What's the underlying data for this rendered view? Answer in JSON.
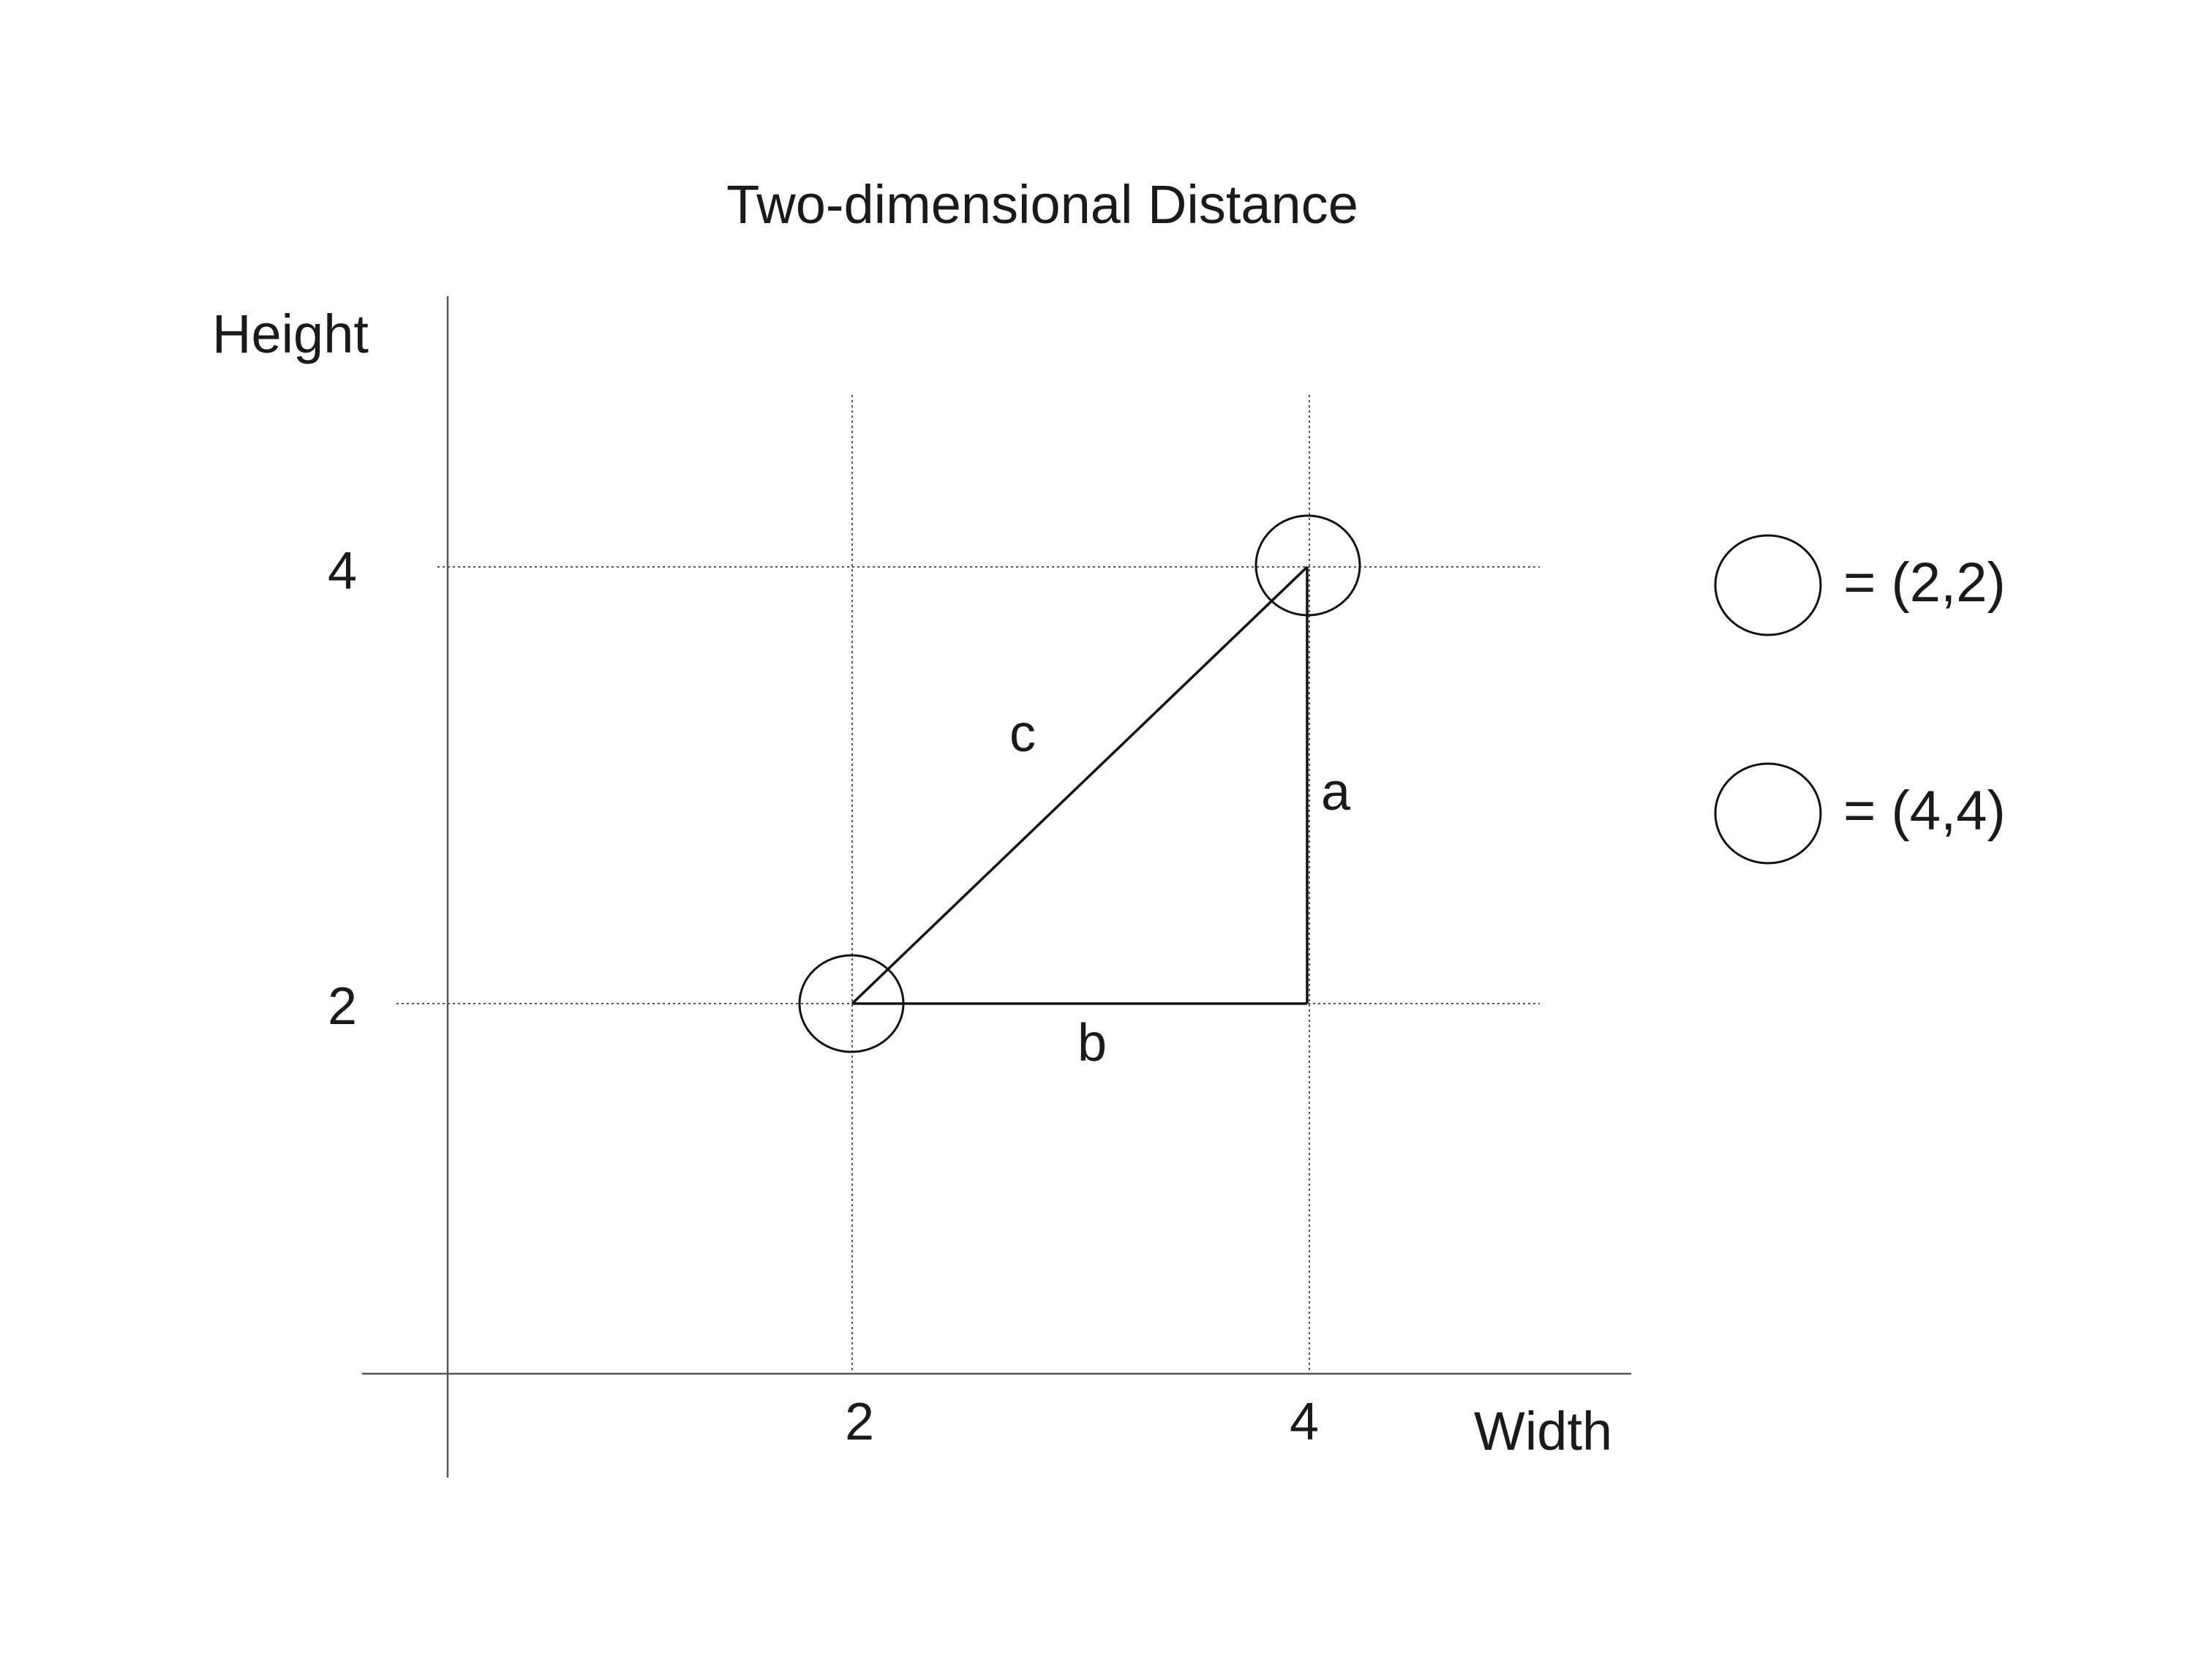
{
  "title": "Two-dimensional Distance",
  "axes": {
    "x_label": "Width",
    "y_label": "Height",
    "x_ticks": [
      2,
      4
    ],
    "y_ticks": [
      4,
      2
    ]
  },
  "points": [
    {
      "x": 2,
      "y": 2
    },
    {
      "x": 4,
      "y": 4
    }
  ],
  "triangle_sides": {
    "hypotenuse": "c",
    "vertical": "a",
    "horizontal": "b"
  },
  "legend": [
    {
      "text": "= (2,2)"
    },
    {
      "text": "= (4,4)"
    }
  ],
  "colors": {
    "ink": "#1a1a1a",
    "grid": "#555555"
  }
}
